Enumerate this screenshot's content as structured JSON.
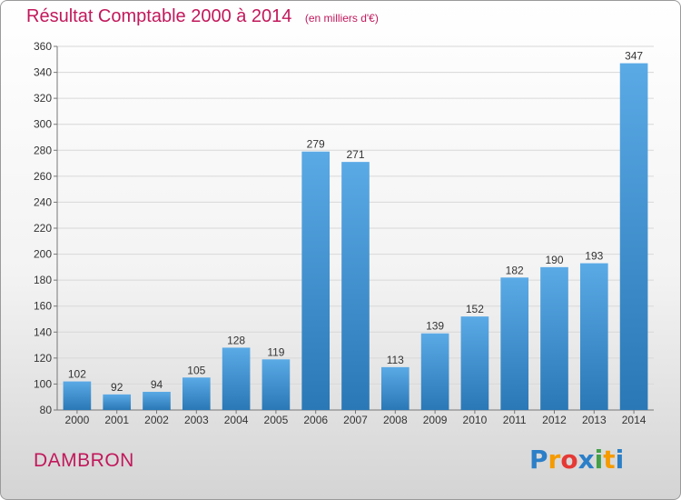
{
  "header": {
    "title": "Résultat Comptable 2000 à 2014",
    "subtitle": "(en milliers d'€)"
  },
  "footer": {
    "commune": "DAMBRON",
    "logo_letters": [
      "P",
      "r",
      "o",
      "x",
      "i",
      "t",
      "i"
    ],
    "logo_colors": [
      "#2b7fc8",
      "#f59b00",
      "#e53935",
      "#2b7fc8",
      "#43a047",
      "#f59b00",
      "#2b7fc8"
    ]
  },
  "colors": {
    "bar_top": "#5aaae6",
    "bar_bottom": "#2a78b6",
    "title": "#c2185b",
    "grid": "#d8d8d8"
  },
  "chart_data": {
    "type": "bar",
    "title": "Résultat Comptable 2000 à 2014",
    "subtitle": "(en milliers d'€)",
    "categories": [
      "2000",
      "2001",
      "2002",
      "2003",
      "2004",
      "2005",
      "2006",
      "2007",
      "2008",
      "2009",
      "2010",
      "2011",
      "2012",
      "2013",
      "2014"
    ],
    "values": [
      102,
      92,
      94,
      105,
      128,
      119,
      279,
      271,
      113,
      139,
      152,
      182,
      190,
      193,
      347
    ],
    "ylim": [
      80,
      360
    ],
    "yticks": [
      80,
      100,
      120,
      140,
      160,
      180,
      200,
      220,
      240,
      260,
      280,
      300,
      320,
      340,
      360
    ],
    "xlabel": "",
    "ylabel": "",
    "grid": true
  }
}
